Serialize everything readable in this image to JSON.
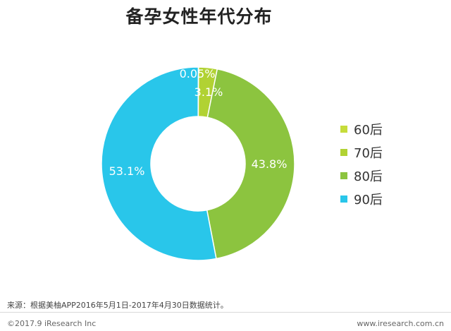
{
  "title": "备孕女性年代分布",
  "chart_data": {
    "type": "pie",
    "title": "备孕女性年代分布",
    "hole": true,
    "start_angle_deg": 0,
    "direction": "clockwise",
    "series": [
      {
        "name": "60后",
        "value": 0.05,
        "label": "0.05%",
        "color": "#c6dc3b"
      },
      {
        "name": "70后",
        "value": 3.1,
        "label": "3.1%",
        "color": "#b1d233"
      },
      {
        "name": "80后",
        "value": 43.8,
        "label": "43.8%",
        "color": "#8cc43f"
      },
      {
        "name": "90后",
        "value": 53.1,
        "label": "53.1%",
        "color": "#29c6ea"
      }
    ],
    "legend_position": "right"
  },
  "source": "来源：根据美柚APP2016年5月1日-2017年4月30日数据统计。",
  "copyright": "©2017.9 iResearch Inc",
  "site": "www.iresearch.com.cn"
}
